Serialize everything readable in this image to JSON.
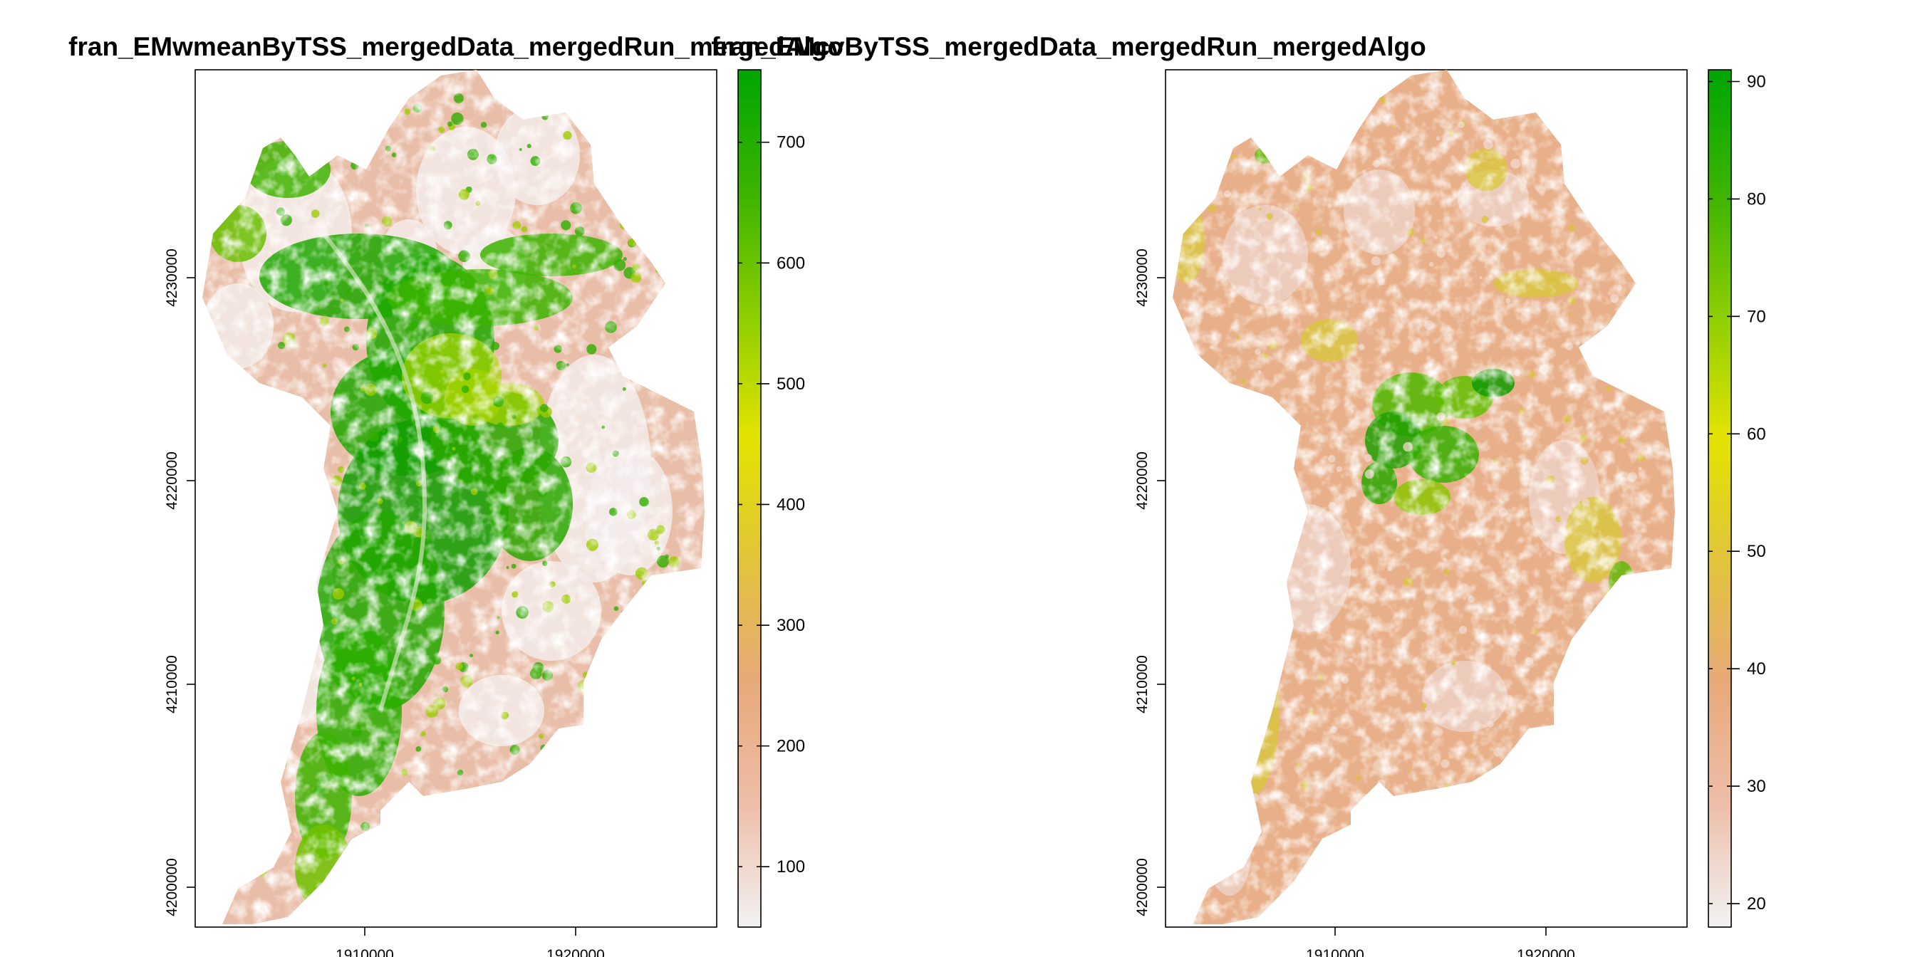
{
  "maps": [
    {
      "title": "fran_EMwmeanByTSS_mergedData_mergedRun_mergedAlgo",
      "x_ticks": [
        "1910000",
        "1920000"
      ],
      "y_ticks": [
        "4200000",
        "4210000",
        "4220000",
        "4230000"
      ],
      "legend": {
        "min": 50,
        "max": 760,
        "ticks": [
          "100",
          "200",
          "300",
          "400",
          "500",
          "600",
          "700"
        ],
        "tick_values": [
          100,
          200,
          300,
          400,
          500,
          600,
          700
        ],
        "colors": [
          "#f2f2f2",
          "#eebea9",
          "#e7a979",
          "#e2c43a",
          "#e3e300",
          "#8cce00",
          "#3cb400",
          "#00a600"
        ]
      },
      "fill_pattern": "high-center"
    },
    {
      "title": "fran_EMcvByTSS_mergedData_mergedRun_mergedAlgo",
      "x_ticks": [
        "1910000",
        "1920000"
      ],
      "y_ticks": [
        "4200000",
        "4210000",
        "4220000",
        "4230000"
      ],
      "legend": {
        "min": 18,
        "max": 91,
        "ticks": [
          "20",
          "30",
          "40",
          "50",
          "60",
          "70",
          "80",
          "90"
        ],
        "tick_values": [
          20,
          30,
          40,
          50,
          60,
          70,
          80,
          90
        ],
        "colors": [
          "#f2f2f2",
          "#eebea9",
          "#e7a979",
          "#e2c43a",
          "#e3e300",
          "#8cce00",
          "#3cb400",
          "#00a600"
        ]
      },
      "fill_pattern": "uniform-low"
    }
  ]
}
